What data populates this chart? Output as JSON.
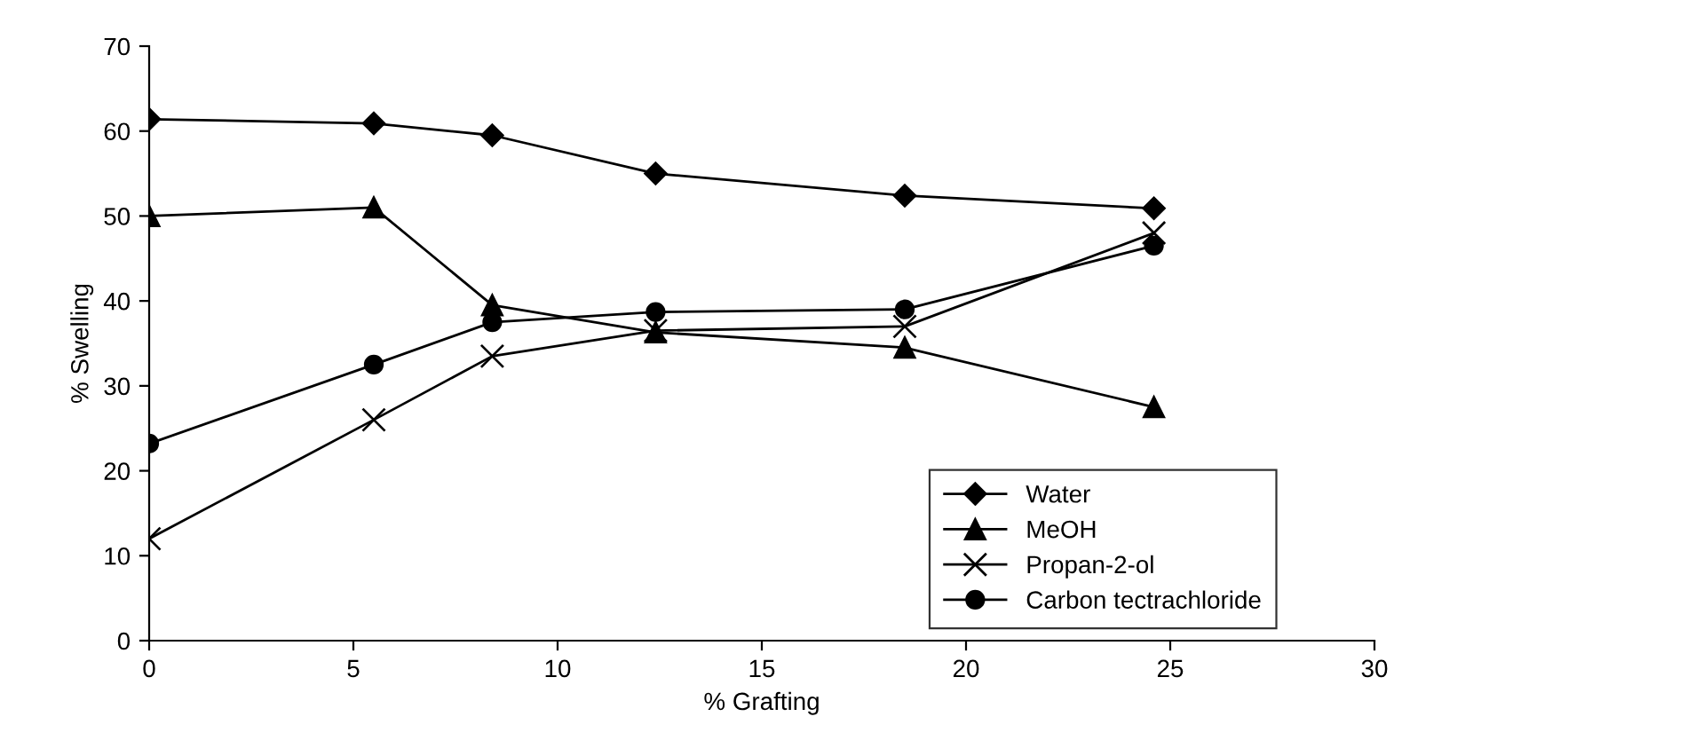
{
  "chart_data": {
    "type": "line",
    "xlabel": "% Grafting",
    "ylabel": "% Swelling",
    "x": [
      0,
      5.5,
      8.4,
      12.4,
      18.5,
      24.6
    ],
    "series": [
      {
        "name": "Water",
        "color": "#000000",
        "marker": "diamond",
        "values": [
          61.4,
          60.9,
          59.5,
          55,
          52.4,
          50.9
        ]
      },
      {
        "name": "MeOH",
        "color": "#000000",
        "marker": "triangle",
        "values": [
          50,
          51,
          39.5,
          36.3,
          34.5,
          27.5
        ]
      },
      {
        "name": "Propan-2-ol",
        "color": "#000000",
        "marker": "cross",
        "values": [
          12,
          26,
          33.5,
          36.5,
          37,
          48
        ]
      },
      {
        "name": "Carbon tectrachloride",
        "color": "#000000",
        "marker": "circle",
        "values": [
          23.2,
          32.5,
          37.5,
          38.7,
          39,
          46.5
        ]
      }
    ],
    "xlim": [
      0,
      30
    ],
    "xticks": [
      0,
      5,
      10,
      15,
      20,
      25,
      30
    ],
    "ylim": [
      0,
      70
    ],
    "yticks": [
      0,
      10,
      20,
      30,
      40,
      50,
      60,
      70
    ],
    "grid": false,
    "legend": "bottom right",
    "line_style": "solid"
  }
}
